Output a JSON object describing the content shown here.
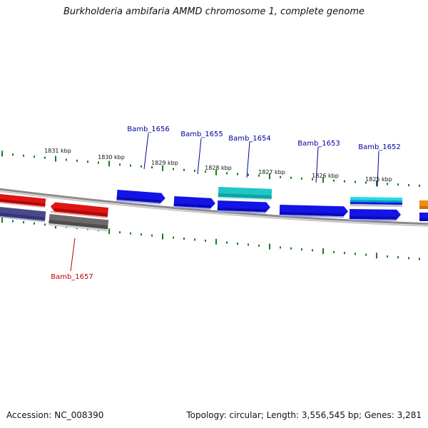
{
  "title": "Burkholderia ambifaria AMMD chromosome 1, complete genome",
  "footer": {
    "accession": "Accession: NC_008390",
    "summary": "Topology: circular; Length: 3,556,545 bp; Genes: 3,281"
  },
  "scale": {
    "unit": "kbp",
    "labels": [
      "1831 kbp",
      "1830 kbp",
      "1829 kbp",
      "1828 kbp",
      "1827 kbp",
      "1826 kbp",
      "1825 kbp"
    ]
  },
  "colors": {
    "forward_gene": "#1414e6",
    "reverse_gene": "#e01414",
    "forward_label": "#00009c",
    "reverse_label": "#c00000",
    "cyan_feature": "#20c6c6",
    "orange_feature": "#f08c10",
    "grey_feature": "#6a6a6a",
    "slate_feature": "#4a4a8a",
    "tick": "#1a7a1a",
    "backbone": "#8a8a8a"
  },
  "gene_labels": [
    {
      "name": "Bamb_1656",
      "strand": "forward"
    },
    {
      "name": "Bamb_1655",
      "strand": "forward"
    },
    {
      "name": "Bamb_1654",
      "strand": "forward"
    },
    {
      "name": "Bamb_1653",
      "strand": "forward"
    },
    {
      "name": "Bamb_1652",
      "strand": "forward"
    },
    {
      "name": "Bamb_1657",
      "strand": "reverse"
    }
  ]
}
